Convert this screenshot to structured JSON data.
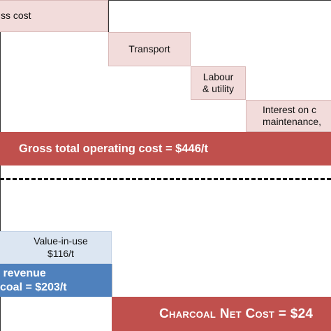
{
  "chart_data": {
    "type": "waterfall",
    "operating_cost_steps": [
      {
        "label": "ss cost"
      },
      {
        "label": "Transport"
      },
      {
        "label": "Labour\n& utility"
      },
      {
        "label": "Interest on c\nmaintenance, "
      }
    ],
    "gross_total": {
      "label": "Gross total operating cost = $446/t",
      "value": 446
    },
    "revenue_steps": [
      {
        "label": "Value-in-use\n$116/t",
        "value": 116
      },
      {
        "label": " revenue\ncoal = $203/t",
        "value": 203
      }
    ],
    "net_cost": {
      "label": "Charcoal Net Cost = $24"
    },
    "colors": {
      "cost_step": "#f2dcdb",
      "cost_total": "#c0504d",
      "revenue_step": "#dce6f2",
      "revenue_total": "#4f81bd"
    }
  }
}
